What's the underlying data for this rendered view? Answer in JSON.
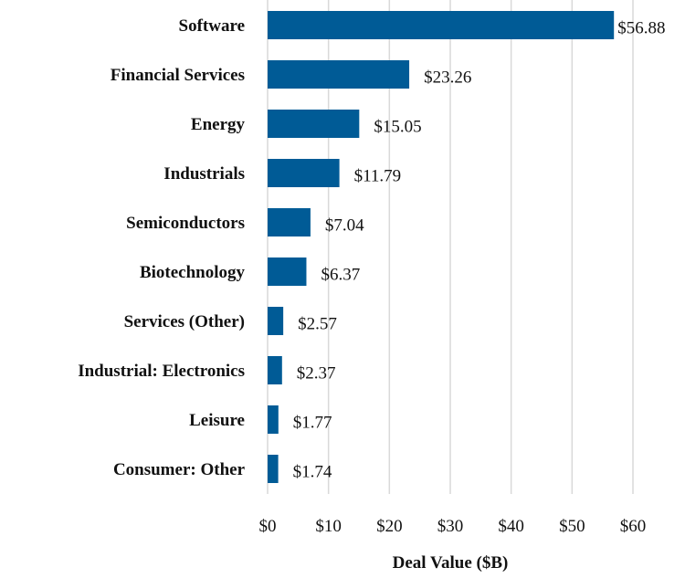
{
  "chart_data": {
    "type": "bar",
    "orientation": "horizontal",
    "title": "",
    "xlabel": "Deal Value ($B)",
    "ylabel": "",
    "xlim": [
      0,
      60
    ],
    "xticks": [
      0,
      10,
      20,
      30,
      40,
      50,
      60
    ],
    "xtick_labels": [
      "$0",
      "$10",
      "$20",
      "$30",
      "$40",
      "$50",
      "$60"
    ],
    "grid": "vertical",
    "categories": [
      "Software",
      "Financial Services",
      "Energy",
      "Industrials",
      "Semiconductors",
      "Biotechnology",
      "Services (Other)",
      "Industrial: Electronics",
      "Leisure",
      "Consumer: Other"
    ],
    "values": [
      56.88,
      23.26,
      15.05,
      11.79,
      7.04,
      6.37,
      2.57,
      2.37,
      1.77,
      1.74
    ],
    "data_labels": [
      "$56.88",
      "$23.26",
      "$15.05",
      "$11.79",
      "$7.04",
      "$6.37",
      "$2.57",
      "$2.37",
      "$1.77",
      "$1.74"
    ],
    "bar_color": "#005b96",
    "grid_color": "#d9d9d9"
  }
}
